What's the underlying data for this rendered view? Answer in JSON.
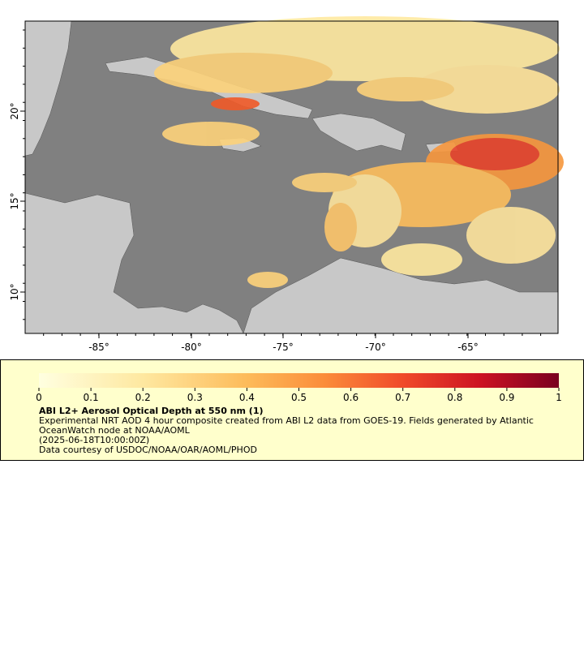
{
  "map": {
    "x_tick_labels": [
      "-85°",
      "-80°",
      "-75°",
      "-70°",
      "-65°"
    ],
    "y_tick_labels": [
      "20°",
      "15°",
      "10°"
    ]
  },
  "colorbar": {
    "ticks": [
      0,
      0.1,
      0.2,
      0.3,
      0.4,
      0.5,
      0.6,
      0.7,
      0.8,
      0.9,
      1
    ]
  },
  "caption": {
    "title": "ABI L2+ Aerosol Optical Depth at 550 nm (1)",
    "description": "Experimental NRT AOD 4 hour composite created from ABI L2 data from GOES-19. Fields generated by Atlantic OceanWatch node at NOAA/AOML",
    "time": "(2025-06-18T10:00:00Z)",
    "credit": "Data courtesy of USDOC/NOAA/OAR/AOML/PHOD"
  }
}
